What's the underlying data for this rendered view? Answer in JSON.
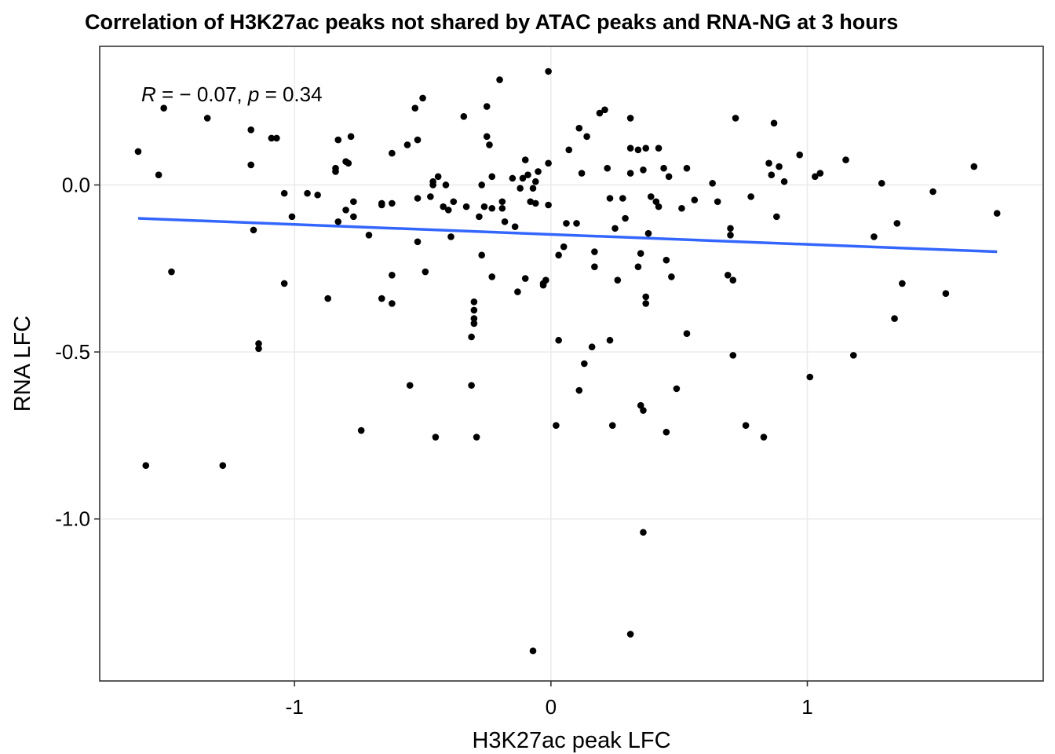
{
  "chart_data": {
    "type": "scatter",
    "title": "Correlation of H3K27ac peaks not shared by ATAC peaks and RNA-NG  at 3 hours",
    "xlabel": "H3K27ac peak LFC",
    "ylabel": "RNA LFC",
    "xlim": [
      -1.76,
      1.92
    ],
    "ylim": [
      -1.485,
      0.415
    ],
    "x_ticks": [
      -1,
      0,
      1
    ],
    "x_tick_labels": [
      "-1",
      "0",
      "1"
    ],
    "y_ticks": [
      0.0,
      -0.5,
      -1.0
    ],
    "y_tick_labels": [
      "0.0",
      "-0.5",
      "-1.0"
    ],
    "grid": true,
    "annotation": {
      "r_symbol": "R",
      "r_text": " = − 0.07, ",
      "p_symbol": "p",
      "p_text": " = 0.34"
    },
    "trend_line": {
      "color": "#3366ff",
      "x": [
        -1.61,
        1.74
      ],
      "y": [
        -0.1,
        -0.2
      ]
    },
    "point_color": "#000000",
    "points": [
      [
        -1.61,
        0.1
      ],
      [
        -1.53,
        0.03
      ],
      [
        -1.51,
        0.23
      ],
      [
        -1.48,
        -0.26
      ],
      [
        -1.58,
        -0.84
      ],
      [
        -1.34,
        0.2
      ],
      [
        -1.28,
        -0.84
      ],
      [
        -1.17,
        0.165
      ],
      [
        -1.17,
        0.06
      ],
      [
        -1.16,
        -0.135
      ],
      [
        -1.14,
        -0.475
      ],
      [
        -1.14,
        -0.49
      ],
      [
        -1.09,
        0.14
      ],
      [
        -1.07,
        0.14
      ],
      [
        -1.04,
        -0.025
      ],
      [
        -1.04,
        -0.295
      ],
      [
        -1.01,
        -0.095
      ],
      [
        -0.95,
        -0.025
      ],
      [
        -0.91,
        -0.03
      ],
      [
        -0.87,
        -0.34
      ],
      [
        -0.84,
        0.05
      ],
      [
        -0.84,
        0.04
      ],
      [
        -0.83,
        0.135
      ],
      [
        -0.83,
        -0.11
      ],
      [
        -0.8,
        0.07
      ],
      [
        -0.79,
        0.065
      ],
      [
        -0.8,
        -0.075
      ],
      [
        -0.78,
        0.145
      ],
      [
        -0.77,
        -0.05
      ],
      [
        -0.77,
        -0.095
      ],
      [
        -0.74,
        -0.735
      ],
      [
        -0.71,
        -0.15
      ],
      [
        -0.66,
        -0.055
      ],
      [
        -0.66,
        -0.06
      ],
      [
        -0.66,
        -0.34
      ],
      [
        -0.62,
        0.095
      ],
      [
        -0.62,
        -0.055
      ],
      [
        -0.62,
        -0.27
      ],
      [
        -0.62,
        -0.355
      ],
      [
        -0.56,
        0.12
      ],
      [
        -0.55,
        -0.6
      ],
      [
        -0.53,
        0.23
      ],
      [
        -0.52,
        0.135
      ],
      [
        -0.52,
        -0.04
      ],
      [
        -0.52,
        -0.17
      ],
      [
        -0.5,
        0.26
      ],
      [
        -0.49,
        -0.26
      ],
      [
        -0.47,
        -0.035
      ],
      [
        -0.46,
        0.0
      ],
      [
        -0.46,
        0.01
      ],
      [
        -0.45,
        -0.755
      ],
      [
        -0.44,
        0.025
      ],
      [
        -0.42,
        -0.065
      ],
      [
        -0.41,
        0.0
      ],
      [
        -0.4,
        -0.075
      ],
      [
        -0.39,
        -0.155
      ],
      [
        -0.38,
        -0.05
      ],
      [
        -0.34,
        0.205
      ],
      [
        -0.33,
        -0.065
      ],
      [
        -0.31,
        -0.6
      ],
      [
        -0.31,
        -0.455
      ],
      [
        -0.3,
        -0.35
      ],
      [
        -0.3,
        -0.375
      ],
      [
        -0.3,
        -0.4
      ],
      [
        -0.3,
        -0.415
      ],
      [
        -0.29,
        -0.755
      ],
      [
        -0.28,
        -0.095
      ],
      [
        -0.27,
        0.0
      ],
      [
        -0.27,
        -0.21
      ],
      [
        -0.26,
        -0.065
      ],
      [
        -0.25,
        0.235
      ],
      [
        -0.25,
        0.145
      ],
      [
        -0.24,
        0.12
      ],
      [
        -0.23,
        0.025
      ],
      [
        -0.23,
        -0.07
      ],
      [
        -0.23,
        -0.275
      ],
      [
        -0.2,
        0.315
      ],
      [
        -0.19,
        -0.05
      ],
      [
        -0.19,
        -0.07
      ],
      [
        -0.18,
        -0.11
      ],
      [
        -0.15,
        0.02
      ],
      [
        -0.14,
        -0.125
      ],
      [
        -0.13,
        -0.32
      ],
      [
        -0.12,
        -0.01
      ],
      [
        -0.11,
        0.02
      ],
      [
        -0.1,
        0.075
      ],
      [
        -0.1,
        -0.28
      ],
      [
        -0.09,
        0.03
      ],
      [
        -0.08,
        -0.05
      ],
      [
        -0.07,
        -0.01
      ],
      [
        -0.07,
        -1.395
      ],
      [
        -0.06,
        0.01
      ],
      [
        -0.06,
        -0.055
      ],
      [
        -0.05,
        0.04
      ],
      [
        -0.03,
        -0.295
      ],
      [
        -0.03,
        -0.3
      ],
      [
        -0.02,
        -0.285
      ],
      [
        -0.01,
        0.065
      ],
      [
        -0.01,
        -0.06
      ],
      [
        -0.01,
        0.34
      ],
      [
        0.02,
        -0.72
      ],
      [
        0.03,
        -0.465
      ],
      [
        0.03,
        -0.21
      ],
      [
        0.05,
        -0.185
      ],
      [
        0.06,
        -0.115
      ],
      [
        0.07,
        0.105
      ],
      [
        0.1,
        -0.115
      ],
      [
        0.11,
        0.17
      ],
      [
        0.11,
        -0.615
      ],
      [
        0.12,
        0.035
      ],
      [
        0.13,
        -0.535
      ],
      [
        0.14,
        0.145
      ],
      [
        0.16,
        -0.485
      ],
      [
        0.17,
        -0.2
      ],
      [
        0.17,
        -0.245
      ],
      [
        0.19,
        0.215
      ],
      [
        0.21,
        0.225
      ],
      [
        0.22,
        0.05
      ],
      [
        0.23,
        -0.04
      ],
      [
        0.23,
        -0.465
      ],
      [
        0.24,
        -0.72
      ],
      [
        0.25,
        -0.13
      ],
      [
        0.26,
        -0.285
      ],
      [
        0.28,
        -0.04
      ],
      [
        0.29,
        -0.1
      ],
      [
        0.31,
        0.11
      ],
      [
        0.31,
        -1.345
      ],
      [
        0.31,
        0.035
      ],
      [
        0.31,
        0.2
      ],
      [
        0.34,
        0.105
      ],
      [
        0.34,
        -0.245
      ],
      [
        0.35,
        -0.205
      ],
      [
        0.35,
        -0.66
      ],
      [
        0.36,
        -0.675
      ],
      [
        0.36,
        -1.04
      ],
      [
        0.36,
        0.045
      ],
      [
        0.37,
        0.11
      ],
      [
        0.37,
        -0.335
      ],
      [
        0.37,
        -0.355
      ],
      [
        0.38,
        -0.145
      ],
      [
        0.39,
        -0.035
      ],
      [
        0.41,
        -0.05
      ],
      [
        0.42,
        0.11
      ],
      [
        0.42,
        -0.065
      ],
      [
        0.44,
        0.05
      ],
      [
        0.45,
        -0.225
      ],
      [
        0.45,
        -0.74
      ],
      [
        0.46,
        0.025
      ],
      [
        0.47,
        -0.275
      ],
      [
        0.49,
        -0.61
      ],
      [
        0.51,
        -0.07
      ],
      [
        0.53,
        -0.445
      ],
      [
        0.53,
        0.05
      ],
      [
        0.56,
        -0.045
      ],
      [
        0.63,
        0.005
      ],
      [
        0.65,
        -0.05
      ],
      [
        0.69,
        -0.27
      ],
      [
        0.7,
        -0.13
      ],
      [
        0.7,
        -0.15
      ],
      [
        0.71,
        -0.285
      ],
      [
        0.71,
        -0.51
      ],
      [
        0.72,
        0.2
      ],
      [
        0.76,
        -0.72
      ],
      [
        0.78,
        -0.035
      ],
      [
        0.83,
        -0.755
      ],
      [
        0.85,
        0.065
      ],
      [
        0.86,
        0.03
      ],
      [
        0.87,
        0.185
      ],
      [
        0.88,
        -0.095
      ],
      [
        0.89,
        0.055
      ],
      [
        0.91,
        0.01
      ],
      [
        0.97,
        0.09
      ],
      [
        1.01,
        -0.575
      ],
      [
        1.03,
        0.025
      ],
      [
        1.05,
        0.035
      ],
      [
        1.15,
        0.075
      ],
      [
        1.18,
        -0.51
      ],
      [
        1.26,
        -0.155
      ],
      [
        1.29,
        0.005
      ],
      [
        1.34,
        -0.4
      ],
      [
        1.35,
        -0.115
      ],
      [
        1.37,
        -0.295
      ],
      [
        1.49,
        -0.02
      ],
      [
        1.54,
        -0.325
      ],
      [
        1.65,
        0.055
      ],
      [
        1.74,
        -0.085
      ]
    ]
  }
}
